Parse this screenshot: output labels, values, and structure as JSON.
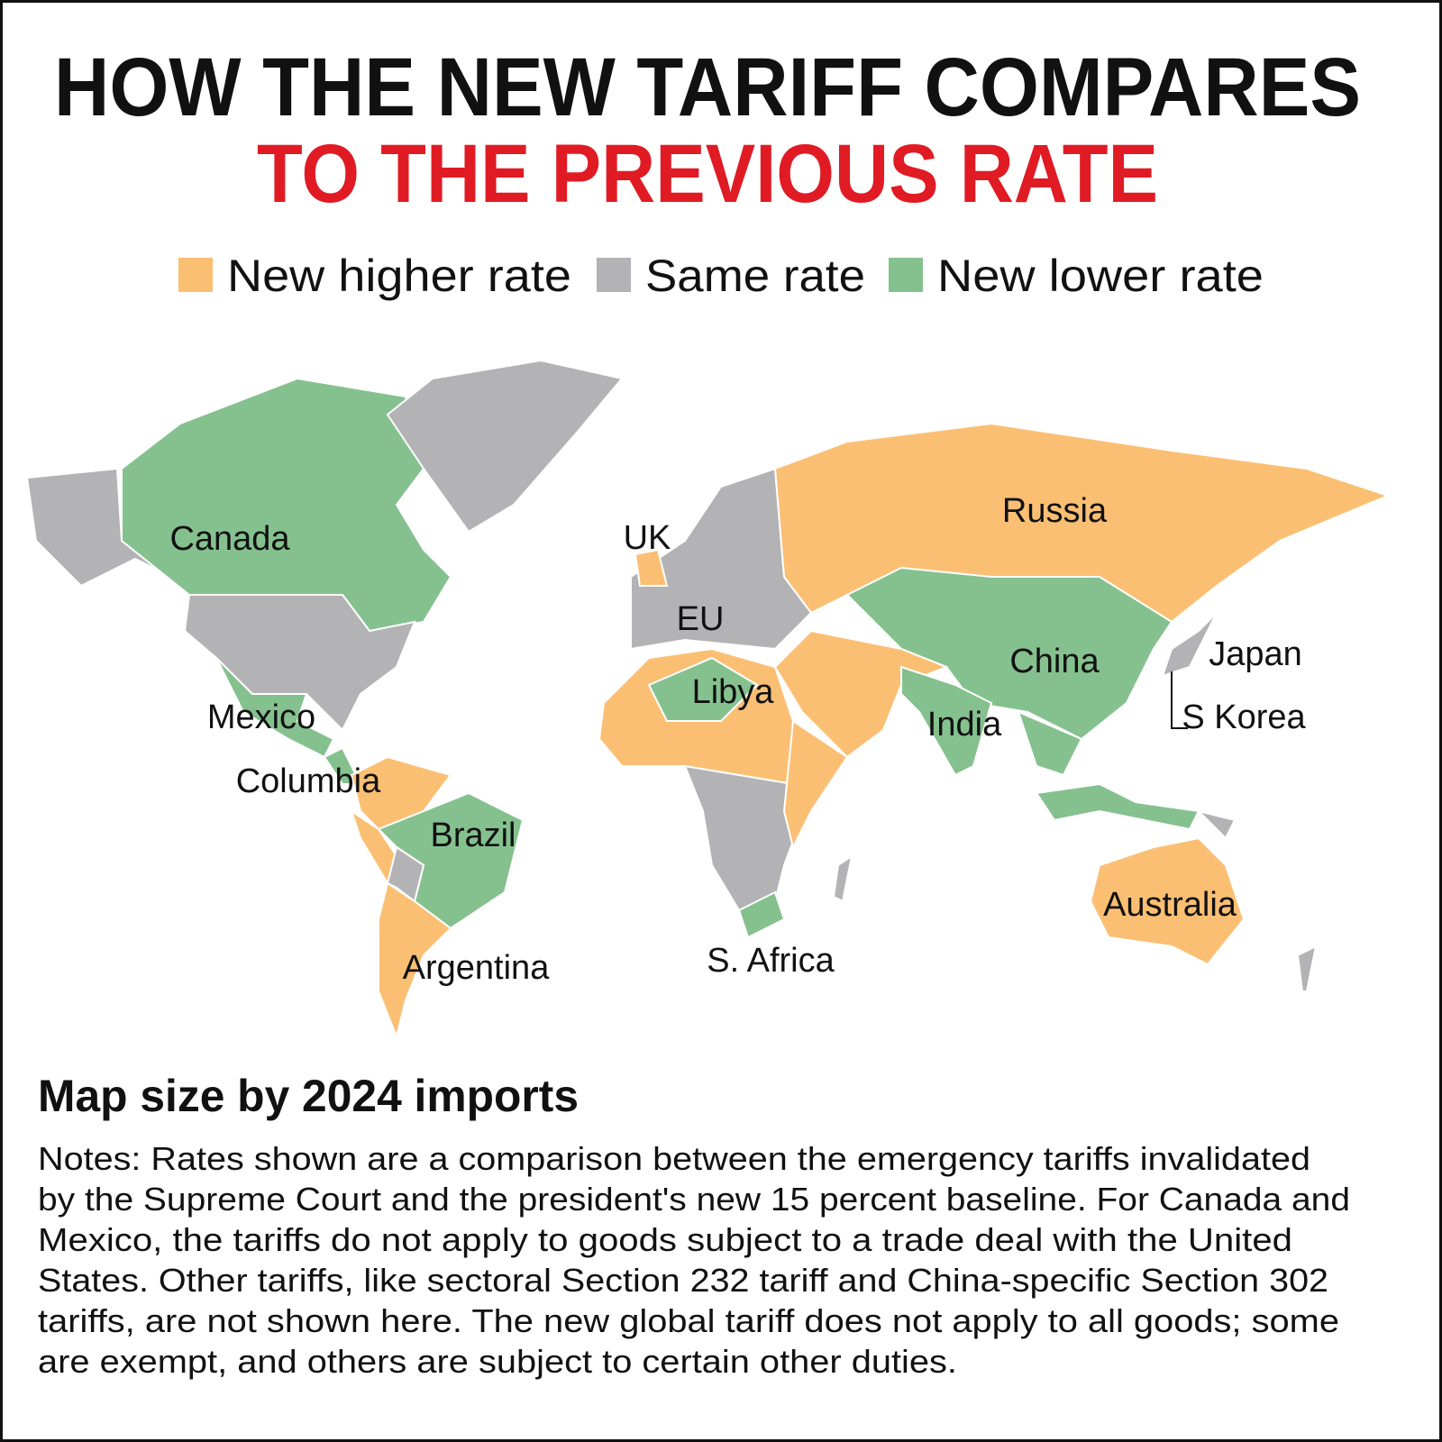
{
  "title": {
    "line1": "HOW THE NEW TARIFF COMPARES",
    "line2": "TO THE PREVIOUS RATE"
  },
  "legend": [
    {
      "label": "New higher rate",
      "color": "#fbbf74"
    },
    {
      "label": "Same rate",
      "color": "#b3b3b5"
    },
    {
      "label": "New lower rate",
      "color": "#85c18f"
    }
  ],
  "map_labels": [
    "Canada",
    "UK",
    "EU",
    "Russia",
    "China",
    "Japan",
    "S Korea",
    "India",
    "Libya",
    "Mexico",
    "Columbia",
    "Brazil",
    "Argentina",
    "S. Africa",
    "Australia"
  ],
  "subtitle": "Map size by 2024 imports",
  "notes": [
    "Notes: Rates shown are a comparison between the emergency tariffs invalidated",
    "by the Supreme Court and the president's new 15 percent baseline. For Canada and",
    "Mexico, the tariffs do not apply to goods subject to a trade deal with the United",
    "States. Other tariffs, like sectoral Section 232 tariff and China-specific Section 302",
    "tariffs, are not shown here. The new global tariff does not apply to all goods; some",
    "are exempt, and others are subject to certain other duties."
  ]
}
